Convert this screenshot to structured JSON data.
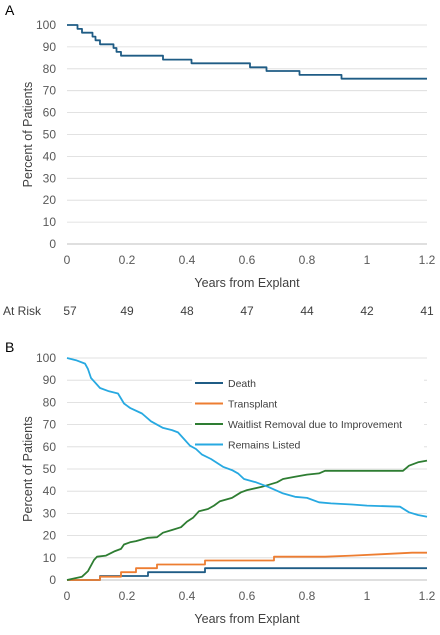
{
  "panels": [
    {
      "letter": "A"
    },
    {
      "letter": "B"
    }
  ],
  "risk_table": {
    "label": "At Risk",
    "values": [
      "57",
      "49",
      "48",
      "47",
      "44",
      "42",
      "41"
    ]
  },
  "chart_data": [
    {
      "type": "line",
      "panel": "A",
      "step": true,
      "xlabel": "Years from Explant",
      "ylabel": "Percent of Patients",
      "xlim": [
        0,
        1.2
      ],
      "ylim": [
        0,
        100
      ],
      "x_ticks": [
        "0",
        "0.2",
        "0.4",
        "0.6",
        "0.8",
        "1",
        "1.2"
      ],
      "y_ticks": [
        "0",
        "10",
        "20",
        "30",
        "40",
        "50",
        "60",
        "70",
        "80",
        "90",
        "100"
      ],
      "grid": true,
      "series": [
        {
          "color": "#1f5c85",
          "points": [
            [
              0,
              100
            ],
            [
              0.035,
              100
            ],
            [
              0.035,
              98.2
            ],
            [
              0.05,
              98.2
            ],
            [
              0.05,
              96.5
            ],
            [
              0.085,
              96.5
            ],
            [
              0.085,
              94.7
            ],
            [
              0.095,
              94.7
            ],
            [
              0.095,
              93
            ],
            [
              0.11,
              93
            ],
            [
              0.11,
              91.2
            ],
            [
              0.155,
              91.2
            ],
            [
              0.155,
              89.5
            ],
            [
              0.165,
              89.5
            ],
            [
              0.165,
              87.7
            ],
            [
              0.18,
              87.7
            ],
            [
              0.18,
              86
            ],
            [
              0.32,
              86
            ],
            [
              0.32,
              84.2
            ],
            [
              0.415,
              84.2
            ],
            [
              0.415,
              82.5
            ],
            [
              0.61,
              82.5
            ],
            [
              0.61,
              80.7
            ],
            [
              0.665,
              80.7
            ],
            [
              0.665,
              79
            ],
            [
              0.775,
              79
            ],
            [
              0.775,
              77.2
            ],
            [
              0.915,
              77.2
            ],
            [
              0.915,
              75.5
            ],
            [
              1.2,
              75.5
            ]
          ]
        }
      ]
    },
    {
      "type": "line",
      "panel": "B",
      "xlabel": "Years from Explant",
      "ylabel": "Percent of Patients",
      "xlim": [
        0,
        1.2
      ],
      "ylim": [
        0,
        100
      ],
      "x_ticks": [
        "0",
        "0.2",
        "0.4",
        "0.6",
        "0.8",
        "1",
        "1.2"
      ],
      "y_ticks": [
        "0",
        "10",
        "20",
        "30",
        "40",
        "50",
        "60",
        "70",
        "80",
        "90",
        "100"
      ],
      "grid": true,
      "legend": "top-right",
      "series": [
        {
          "name": "Death",
          "color": "#1f5c85",
          "points": [
            [
              0,
              0
            ],
            [
              0.11,
              0
            ],
            [
              0.11,
              1.8
            ],
            [
              0.27,
              1.8
            ],
            [
              0.27,
              3.5
            ],
            [
              0.46,
              3.5
            ],
            [
              0.46,
              5.3
            ],
            [
              1.2,
              5.3
            ]
          ]
        },
        {
          "name": "Transplant",
          "color": "#ed7d31",
          "points": [
            [
              0,
              0
            ],
            [
              0.11,
              0
            ],
            [
              0.11,
              1.5
            ],
            [
              0.18,
              1.5
            ],
            [
              0.18,
              3.5
            ],
            [
              0.23,
              3.5
            ],
            [
              0.23,
              5.3
            ],
            [
              0.3,
              5.3
            ],
            [
              0.3,
              7
            ],
            [
              0.46,
              7
            ],
            [
              0.46,
              8.8
            ],
            [
              0.69,
              8.8
            ],
            [
              0.69,
              10.5
            ],
            [
              0.86,
              10.5
            ],
            [
              0.95,
              11
            ],
            [
              1.05,
              11.6
            ],
            [
              1.15,
              12.3
            ],
            [
              1.2,
              12.3
            ]
          ]
        },
        {
          "name": "Waitlist Removal due to Improvement",
          "color": "#2e7d32",
          "points": [
            [
              0,
              0
            ],
            [
              0.05,
              1.5
            ],
            [
              0.07,
              4
            ],
            [
              0.09,
              9
            ],
            [
              0.1,
              10.5
            ],
            [
              0.13,
              11
            ],
            [
              0.16,
              13
            ],
            [
              0.18,
              14
            ],
            [
              0.19,
              16
            ],
            [
              0.21,
              17
            ],
            [
              0.23,
              17.5
            ],
            [
              0.27,
              19
            ],
            [
              0.3,
              19.3
            ],
            [
              0.32,
              21.3
            ],
            [
              0.35,
              22.5
            ],
            [
              0.38,
              23.8
            ],
            [
              0.4,
              26.3
            ],
            [
              0.42,
              28
            ],
            [
              0.44,
              31
            ],
            [
              0.47,
              32
            ],
            [
              0.49,
              33.5
            ],
            [
              0.51,
              35.5
            ],
            [
              0.55,
              37
            ],
            [
              0.58,
              39.5
            ],
            [
              0.6,
              40.5
            ],
            [
              0.65,
              42
            ],
            [
              0.7,
              44
            ],
            [
              0.72,
              45.5
            ],
            [
              0.76,
              46.5
            ],
            [
              0.8,
              47.5
            ],
            [
              0.84,
              48
            ],
            [
              0.86,
              49.2
            ],
            [
              1.12,
              49.2
            ],
            [
              1.14,
              51.5
            ],
            [
              1.17,
              53
            ],
            [
              1.2,
              53.8
            ]
          ]
        },
        {
          "name": "Remains Listed",
          "color": "#27a9e1",
          "points": [
            [
              0,
              100
            ],
            [
              0.03,
              99
            ],
            [
              0.06,
              97.5
            ],
            [
              0.07,
              95
            ],
            [
              0.08,
              91
            ],
            [
              0.09,
              89.5
            ],
            [
              0.11,
              86.5
            ],
            [
              0.14,
              85
            ],
            [
              0.17,
              84
            ],
            [
              0.19,
              79.5
            ],
            [
              0.21,
              77.5
            ],
            [
              0.25,
              75
            ],
            [
              0.28,
              71.5
            ],
            [
              0.32,
              68.5
            ],
            [
              0.35,
              67.5
            ],
            [
              0.37,
              66.5
            ],
            [
              0.39,
              63.5
            ],
            [
              0.41,
              60.5
            ],
            [
              0.43,
              59
            ],
            [
              0.45,
              56.5
            ],
            [
              0.48,
              54.5
            ],
            [
              0.52,
              51
            ],
            [
              0.55,
              49.5
            ],
            [
              0.57,
              48
            ],
            [
              0.59,
              45.5
            ],
            [
              0.63,
              44
            ],
            [
              0.67,
              42
            ],
            [
              0.72,
              39
            ],
            [
              0.76,
              37.5
            ],
            [
              0.8,
              37
            ],
            [
              0.84,
              35
            ],
            [
              0.88,
              34.5
            ],
            [
              0.95,
              34
            ],
            [
              1.0,
              33.5
            ],
            [
              1.11,
              33
            ],
            [
              1.14,
              30.5
            ],
            [
              1.17,
              29.3
            ],
            [
              1.2,
              28.5
            ]
          ]
        }
      ]
    }
  ]
}
